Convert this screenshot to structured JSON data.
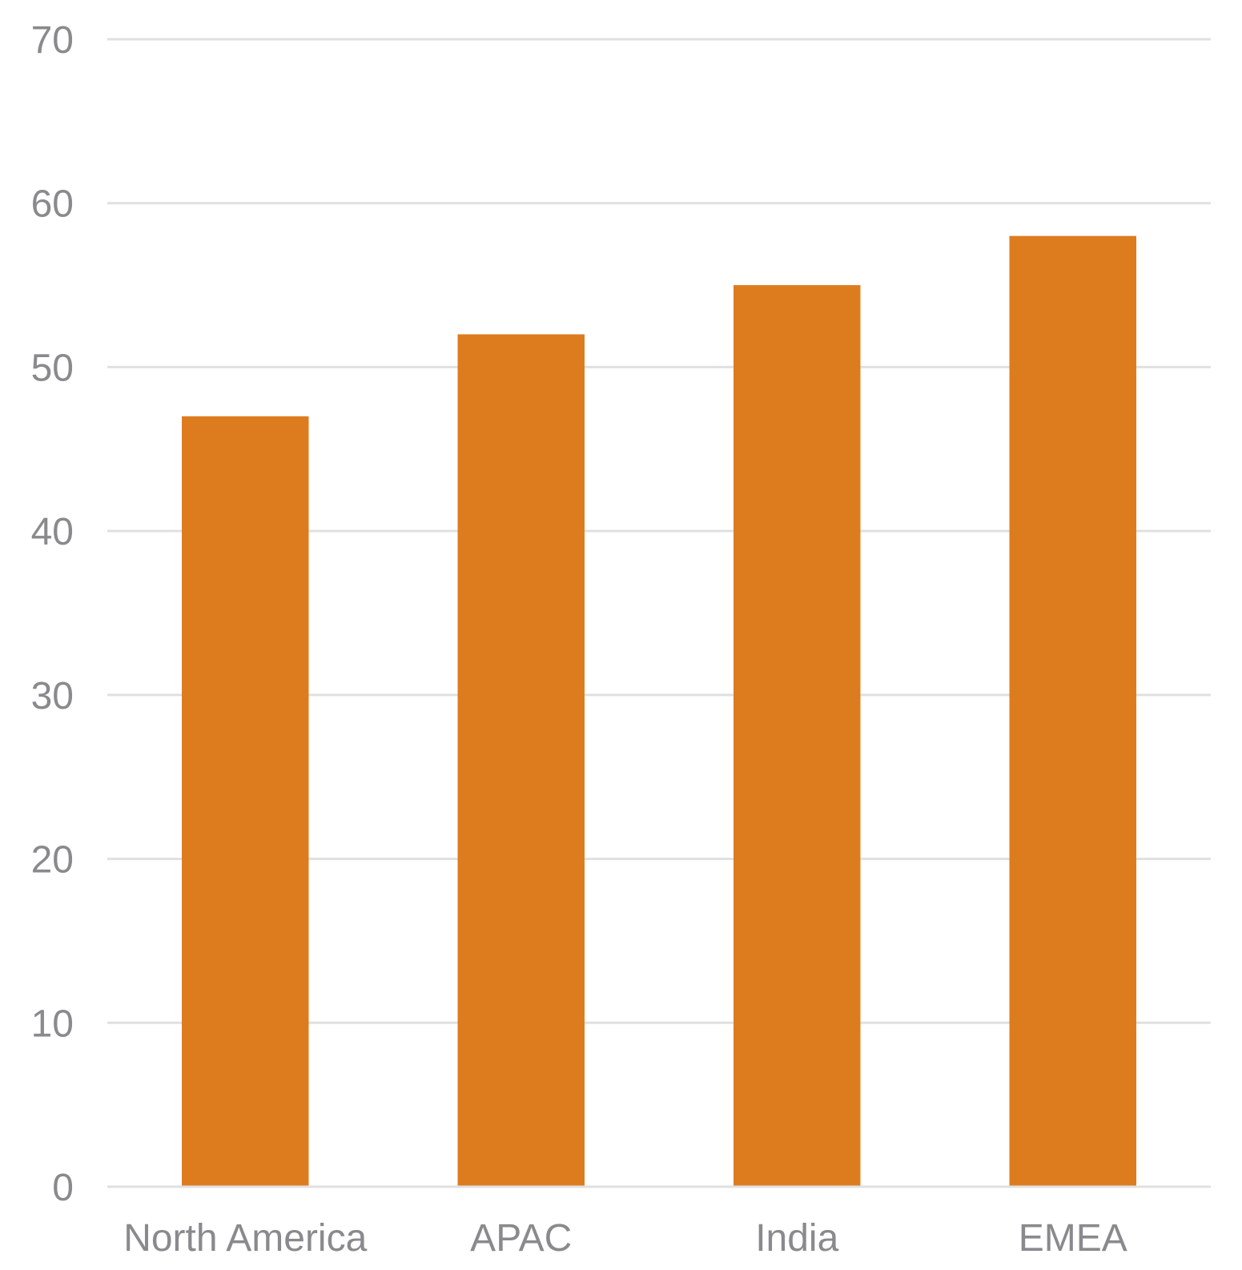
{
  "chart_data": {
    "type": "bar",
    "categories": [
      "North America",
      "APAC",
      "India",
      "EMEA"
    ],
    "values": [
      47,
      52,
      55,
      58
    ],
    "title": "",
    "xlabel": "",
    "ylabel": "",
    "ylim": [
      0,
      70
    ],
    "yticks": [
      "0",
      "10",
      "20",
      "30",
      "40",
      "50",
      "60",
      "70"
    ],
    "grid": true,
    "legend": "none",
    "colors": {
      "bar": "#dd7c1f",
      "grid": "#e0e0e0",
      "text": "#8a8a8e"
    }
  }
}
